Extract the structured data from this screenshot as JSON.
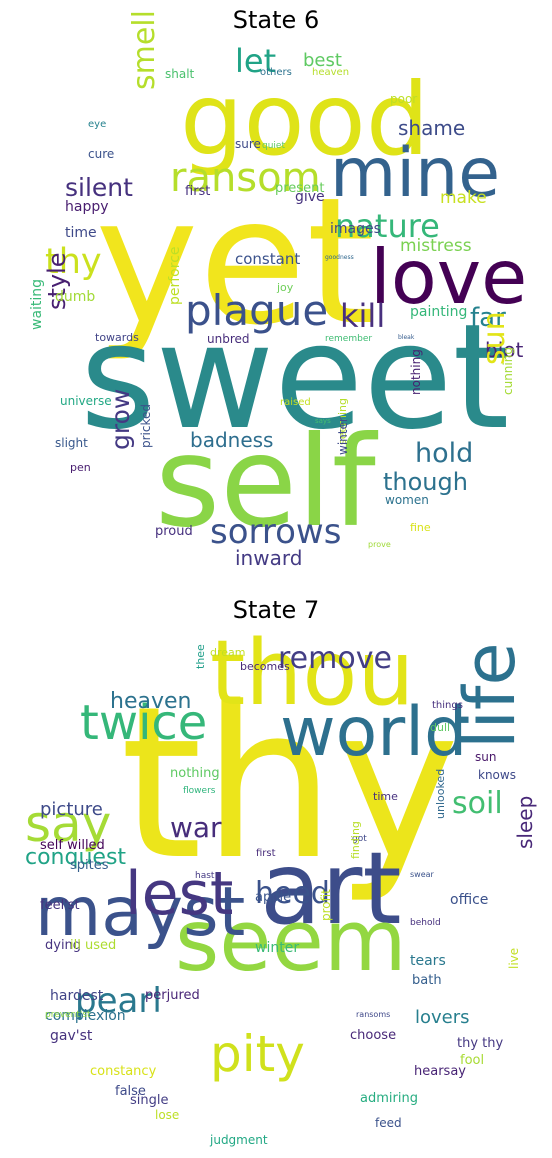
{
  "panels": [
    {
      "title": "State 6",
      "words": [
        {
          "t": "yet",
          "c": "#f1e51d"
        },
        {
          "t": "sweet",
          "c": "#2a8a8b"
        },
        {
          "t": "self",
          "c": "#8ad547"
        },
        {
          "t": "good",
          "c": "#dfe318"
        },
        {
          "t": "mine",
          "c": "#33628d"
        },
        {
          "t": "love",
          "c": "#440154"
        },
        {
          "t": "ransom",
          "c": "#b5de2b"
        },
        {
          "t": "plague",
          "c": "#3b518b"
        },
        {
          "t": "sorrows",
          "c": "#3b528b"
        },
        {
          "t": "nature",
          "c": "#35b779"
        },
        {
          "t": "kill",
          "c": "#48307e"
        },
        {
          "t": "silent",
          "c": "#46317e"
        },
        {
          "t": "thy",
          "c": "#cbe11e"
        },
        {
          "t": "let",
          "c": "#20a386"
        },
        {
          "t": "best",
          "c": "#5ec962"
        },
        {
          "t": "smell",
          "c": "#b5de2b"
        },
        {
          "t": "shame",
          "c": "#3e4c8a"
        },
        {
          "t": "style",
          "c": "#482071"
        },
        {
          "t": "far",
          "c": "#26828e"
        },
        {
          "t": "blot",
          "c": "#482475"
        },
        {
          "t": "sun",
          "c": "#e2e418"
        },
        {
          "t": "hold",
          "c": "#2d708e"
        },
        {
          "t": "though",
          "c": "#2c728e"
        },
        {
          "t": "grow",
          "c": "#443983"
        },
        {
          "t": "badness",
          "c": "#2e6e8e"
        },
        {
          "t": "inward",
          "c": "#443b84"
        },
        {
          "t": "mistress",
          "c": "#7ad151"
        },
        {
          "t": "make",
          "c": "#c8e020"
        },
        {
          "t": "give",
          "c": "#46327e"
        },
        {
          "t": "images",
          "c": "#3f4788"
        },
        {
          "t": "constant",
          "c": "#3b528b"
        },
        {
          "t": "painting",
          "c": "#35b779"
        },
        {
          "t": "first",
          "c": "#46307e"
        },
        {
          "t": "present",
          "c": "#67cc5c"
        },
        {
          "t": "happy",
          "c": "#481d6f"
        },
        {
          "t": "time",
          "c": "#3e4989"
        },
        {
          "t": "waiting",
          "c": "#38b977"
        },
        {
          "t": "dumb",
          "c": "#a2da37"
        },
        {
          "t": "cure",
          "c": "#3b528b"
        },
        {
          "t": "sure",
          "c": "#3e4a89"
        },
        {
          "t": "shalt",
          "c": "#4ac16d"
        },
        {
          "t": "others",
          "c": "#2c728e"
        },
        {
          "t": "heaven",
          "c": "#b5de2b"
        },
        {
          "t": "poor",
          "c": "#bddf26"
        },
        {
          "t": "eye",
          "c": "#26828e"
        },
        {
          "t": "quiet",
          "c": "#5ec962"
        },
        {
          "t": "perforce",
          "c": "#bddf26"
        },
        {
          "t": "joy",
          "c": "#6ece58"
        },
        {
          "t": "towards",
          "c": "#414487"
        },
        {
          "t": "unbred",
          "c": "#472d7b"
        },
        {
          "t": "remember",
          "c": "#3fbc73"
        },
        {
          "t": "bleak",
          "c": "#365c8d"
        },
        {
          "t": "goodness",
          "c": "#31688e"
        },
        {
          "t": "nothing",
          "c": "#482071"
        },
        {
          "t": "cunning",
          "c": "#a5db36"
        },
        {
          "t": "universe",
          "c": "#22a884"
        },
        {
          "t": "raised",
          "c": "#c5e021"
        },
        {
          "t": "says",
          "c": "#44bf70"
        },
        {
          "t": "slight",
          "c": "#38588c"
        },
        {
          "t": "pricked",
          "c": "#3b528b"
        },
        {
          "t": "pen",
          "c": "#481d6f"
        },
        {
          "t": "seeming",
          "c": "#b5de2b"
        },
        {
          "t": "winter",
          "c": "#3e4a89"
        },
        {
          "t": "women",
          "c": "#2c728e"
        },
        {
          "t": "proud",
          "c": "#46307e"
        },
        {
          "t": "fine",
          "c": "#d8e219"
        },
        {
          "t": "prove",
          "c": "#a0da39"
        }
      ]
    },
    {
      "title": "State 7",
      "words": [
        {
          "t": "thy",
          "c": "#ece51b"
        },
        {
          "t": "thou",
          "c": "#e2e418"
        },
        {
          "t": "art",
          "c": "#3d4d8a"
        },
        {
          "t": "seem",
          "c": "#93d741"
        },
        {
          "t": "world",
          "c": "#2d708e"
        },
        {
          "t": "mayst",
          "c": "#3b528b"
        },
        {
          "t": "life",
          "c": "#2c718e"
        },
        {
          "t": "lest",
          "c": "#453781"
        },
        {
          "t": "twice",
          "c": "#35b779"
        },
        {
          "t": "say",
          "c": "#a5db36"
        },
        {
          "t": "pity",
          "c": "#d0e11c"
        },
        {
          "t": "remove",
          "c": "#433e85"
        },
        {
          "t": "heed",
          "c": "#3b528b"
        },
        {
          "t": "pearl",
          "c": "#2a788e"
        },
        {
          "t": "soil",
          "c": "#42be71"
        },
        {
          "t": "heaven",
          "c": "#2c728e"
        },
        {
          "t": "war",
          "c": "#472d7b"
        },
        {
          "t": "conquest",
          "c": "#20a386"
        },
        {
          "t": "picture",
          "c": "#3e4a89"
        },
        {
          "t": "sleep",
          "c": "#482878"
        },
        {
          "t": "lovers",
          "c": "#277f8e"
        },
        {
          "t": "self willed",
          "c": "#450559"
        },
        {
          "t": "spites",
          "c": "#355f8d"
        },
        {
          "t": "nothing",
          "c": "#5ec962"
        },
        {
          "t": "feel'st",
          "c": "#46327e"
        },
        {
          "t": "office",
          "c": "#3b518b"
        },
        {
          "t": "apple",
          "c": "#3a548c"
        },
        {
          "t": "dying",
          "c": "#46337f"
        },
        {
          "t": "ill used",
          "c": "#addc30"
        },
        {
          "t": "winter",
          "c": "#3bbb75"
        },
        {
          "t": "tears",
          "c": "#2a788e"
        },
        {
          "t": "bath",
          "c": "#355f8d"
        },
        {
          "t": "live",
          "c": "#c2df23"
        },
        {
          "t": "hardest",
          "c": "#414487"
        },
        {
          "t": "perjured",
          "c": "#482576"
        },
        {
          "t": "complexion",
          "c": "#2c728e"
        },
        {
          "t": "gav'st",
          "c": "#46327e"
        },
        {
          "t": "choose",
          "c": "#482878"
        },
        {
          "t": "thy thy",
          "c": "#453882"
        },
        {
          "t": "fool",
          "c": "#a8db34"
        },
        {
          "t": "constancy",
          "c": "#d8e219"
        },
        {
          "t": "false",
          "c": "#3e4a89"
        },
        {
          "t": "hearsay",
          "c": "#482475"
        },
        {
          "t": "single",
          "c": "#433d84"
        },
        {
          "t": "admiring",
          "c": "#27ad81"
        },
        {
          "t": "lose",
          "c": "#bddf26"
        },
        {
          "t": "feed",
          "c": "#3b528b"
        },
        {
          "t": "judgment",
          "c": "#22a884"
        },
        {
          "t": "becomes",
          "c": "#482878"
        },
        {
          "t": "dream",
          "c": "#c2df23"
        },
        {
          "t": "thee",
          "c": "#1f9e89"
        },
        {
          "t": "dull",
          "c": "#5ec962"
        },
        {
          "t": "things",
          "c": "#46307e"
        },
        {
          "t": "sun",
          "c": "#481769"
        },
        {
          "t": "knows",
          "c": "#3e4989"
        },
        {
          "t": "time",
          "c": "#46307e"
        },
        {
          "t": "flowers",
          "c": "#2fb47c"
        },
        {
          "t": "unlooked",
          "c": "#31688e"
        },
        {
          "t": "got",
          "c": "#3f4788"
        },
        {
          "t": "first",
          "c": "#472c7a"
        },
        {
          "t": "hast",
          "c": "#443983"
        },
        {
          "t": "finding",
          "c": "#b8de29"
        },
        {
          "t": "swear",
          "c": "#3b528b"
        },
        {
          "t": "behold",
          "c": "#46307e"
        },
        {
          "t": "profit",
          "c": "#bddf26"
        },
        {
          "t": "prevent'st",
          "c": "#8ed645"
        },
        {
          "t": "ransoms",
          "c": "#3f4889"
        }
      ]
    }
  ]
}
